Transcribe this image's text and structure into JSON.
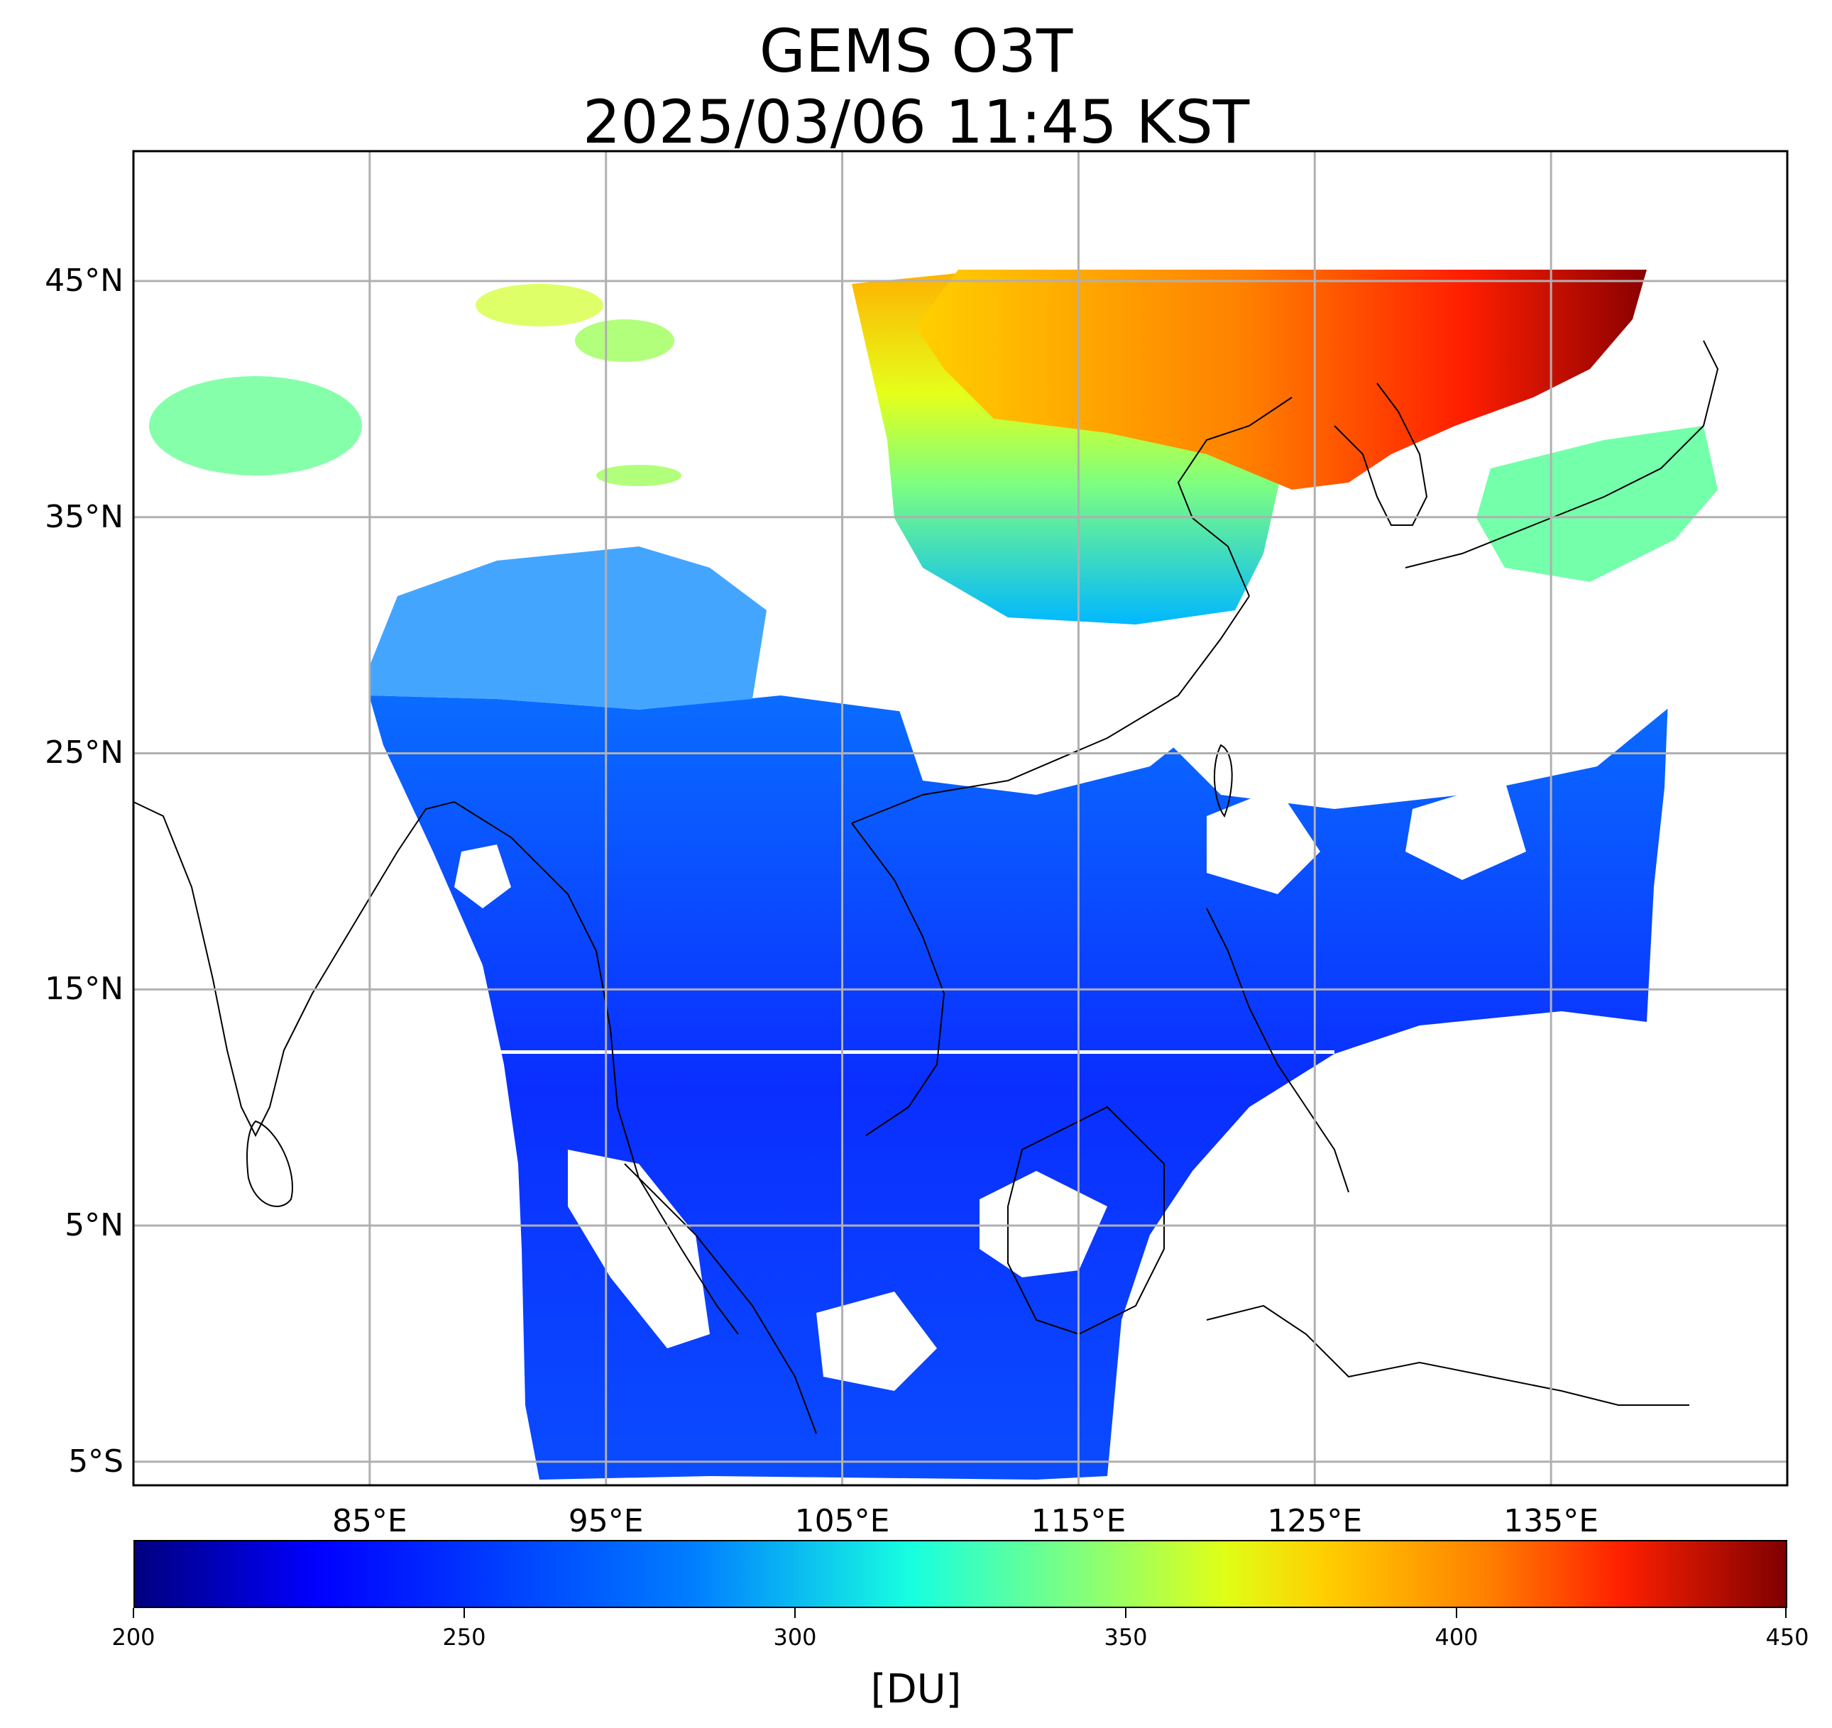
{
  "title": {
    "line1": "GEMS O3T",
    "line2": "2025/03/06 11:45 KST"
  },
  "map": {
    "lon_range": [
      75,
      145
    ],
    "lat_range": [
      -6,
      50.5
    ],
    "lat_gridlines": [
      {
        "value": 45,
        "label": "45°N"
      },
      {
        "value": 35,
        "label": "35°N"
      },
      {
        "value": 25,
        "label": "25°N"
      },
      {
        "value": 15,
        "label": "15°N"
      },
      {
        "value": 5,
        "label": "5°N"
      },
      {
        "value": -5,
        "label": "5°S"
      }
    ],
    "lon_gridlines": [
      {
        "value": 85,
        "label": "85°E"
      },
      {
        "value": 95,
        "label": "95°E"
      },
      {
        "value": 105,
        "label": "105°E"
      },
      {
        "value": 115,
        "label": "115°E"
      },
      {
        "value": 125,
        "label": "125°E"
      },
      {
        "value": 135,
        "label": "135°E"
      }
    ],
    "ozone_regions": [
      {
        "region": "northeast-china-korea-max",
        "value_du": 440
      },
      {
        "region": "north-china-plain",
        "value_du": 400
      },
      {
        "region": "inner-mongolia",
        "value_du": 375
      },
      {
        "region": "central-china",
        "value_du": 330
      },
      {
        "region": "yangtze-basin",
        "value_du": 290
      },
      {
        "region": "tibetan-plateau",
        "value_du": 275
      },
      {
        "region": "western-mongolia",
        "value_du": 340
      },
      {
        "region": "tropics-south-china-sea",
        "value_du": 240
      },
      {
        "region": "western-pacific",
        "value_du": 250
      },
      {
        "region": "japan",
        "value_du": 320
      }
    ]
  },
  "colorbar": {
    "min": 200,
    "max": 450,
    "ticks": [
      {
        "value": 200,
        "label": "200"
      },
      {
        "value": 250,
        "label": "250"
      },
      {
        "value": 300,
        "label": "300"
      },
      {
        "value": 350,
        "label": "350"
      },
      {
        "value": 400,
        "label": "400"
      },
      {
        "value": 450,
        "label": "450"
      }
    ],
    "unit": "[DU]",
    "colormap": [
      "#00007f",
      "#0000ff",
      "#007fff",
      "#17ffe0",
      "#7fff7f",
      "#e0ff17",
      "#ffcf00",
      "#ff7f00",
      "#ff2000",
      "#7f0000"
    ]
  }
}
